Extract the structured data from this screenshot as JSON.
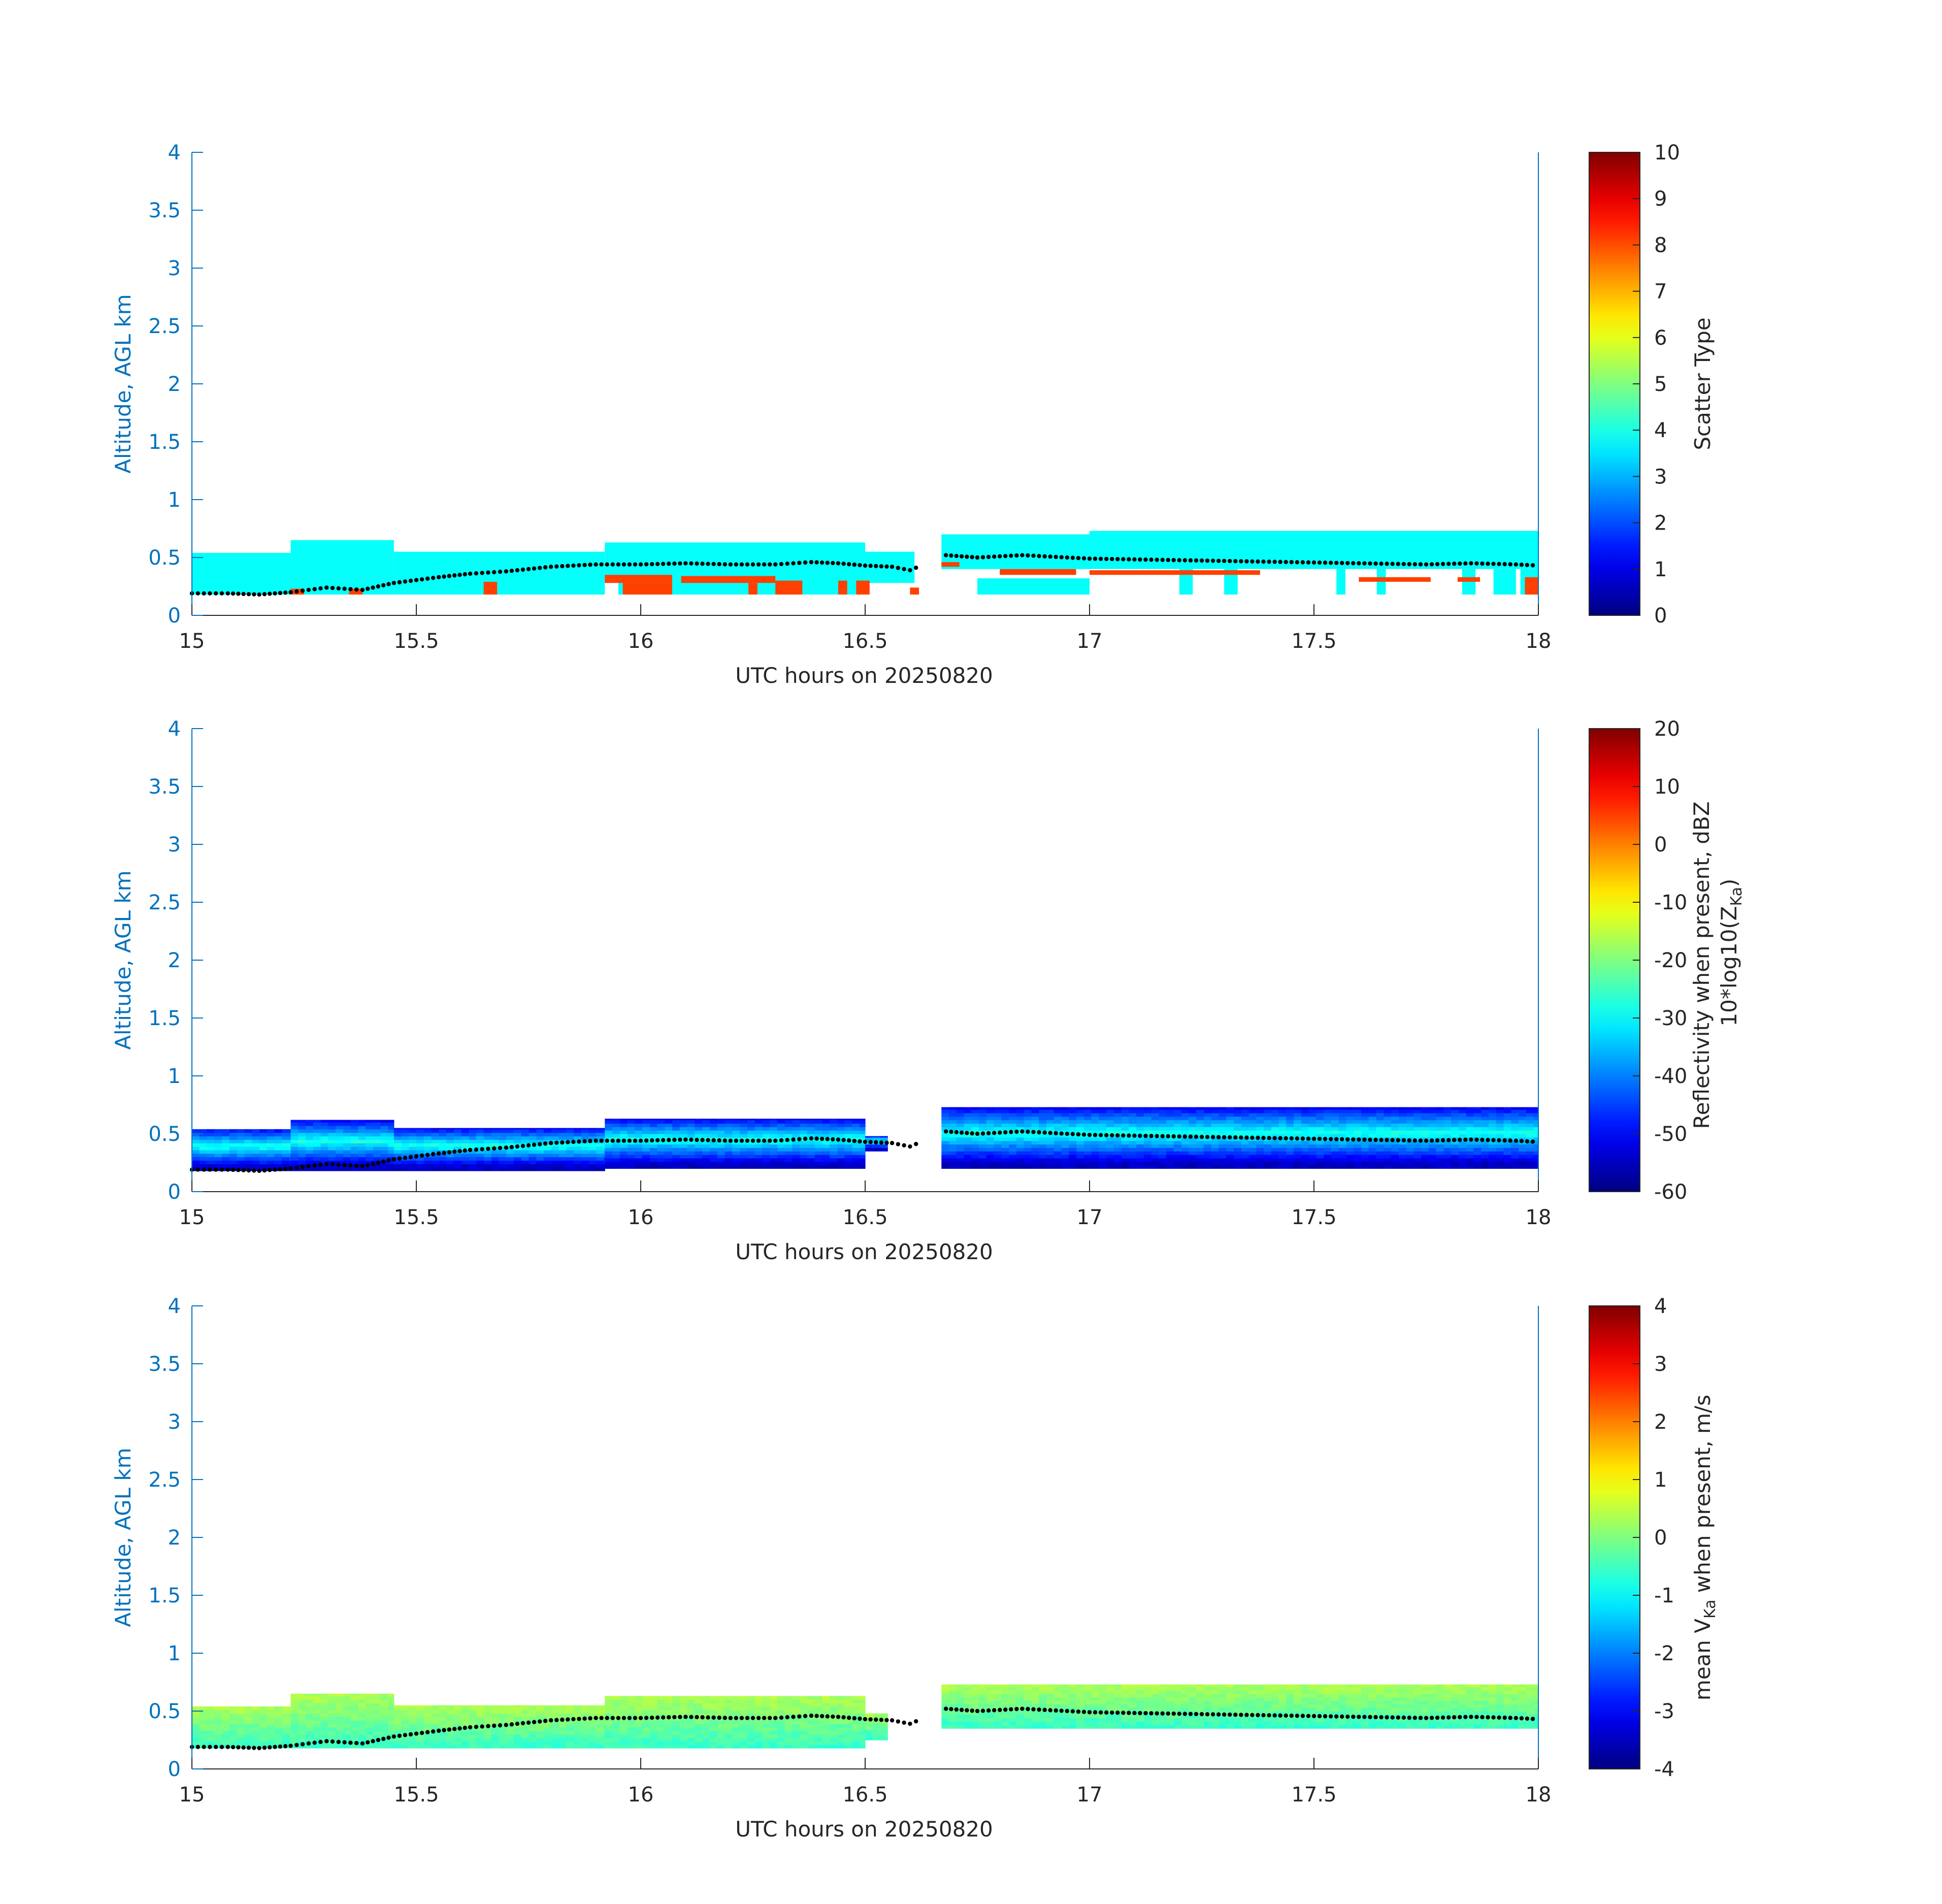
{
  "chart_data": [
    {
      "type": "heatmap",
      "panel": "scatter-type",
      "xlabel": "UTC hours on 20250820",
      "ylabel": "Altitude, AGL km",
      "xlim": [
        15,
        18
      ],
      "ylim": [
        0,
        4
      ],
      "xticks": [
        "15",
        "15.5",
        "16",
        "16.5",
        "17",
        "17.5",
        "18"
      ],
      "yticks": [
        "0",
        "0.5",
        "1",
        "1.5",
        "2",
        "2.5",
        "3",
        "3.5",
        "4"
      ],
      "colorbar": {
        "label": "Scatter Type",
        "range": [
          0,
          10
        ],
        "ticks": [
          "0",
          "1",
          "2",
          "3",
          "4",
          "5",
          "6",
          "7",
          "8",
          "9",
          "10"
        ],
        "colormap": "jet"
      },
      "cloud_layer": {
        "value": 3.8,
        "segments": [
          {
            "x": [
              15.0,
              15.22
            ],
            "y": [
              0.18,
              0.54
            ]
          },
          {
            "x": [
              15.22,
              15.45
            ],
            "y": [
              0.18,
              0.65
            ]
          },
          {
            "x": [
              15.45,
              15.92
            ],
            "y": [
              0.18,
              0.55
            ]
          },
          {
            "x": [
              15.92,
              16.5
            ],
            "y": [
              0.3,
              0.63
            ]
          },
          {
            "x": [
              16.5,
              16.61
            ],
            "y": [
              0.28,
              0.55
            ]
          },
          {
            "x": [
              16.67,
              17.0
            ],
            "y": [
              0.4,
              0.7
            ]
          },
          {
            "x": [
              17.0,
              18.0
            ],
            "y": [
              0.4,
              0.73
            ]
          }
        ],
        "lower_patches": [
          {
            "x": [
              15.95,
              16.5
            ],
            "y": [
              0.18,
              0.32
            ]
          },
          {
            "x": [
              16.75,
              17.0
            ],
            "y": [
              0.18,
              0.32
            ]
          },
          {
            "x": [
              17.2,
              17.23
            ],
            "y": [
              0.18,
              0.4
            ]
          },
          {
            "x": [
              17.3,
              17.33
            ],
            "y": [
              0.18,
              0.4
            ]
          },
          {
            "x": [
              17.55,
              17.57
            ],
            "y": [
              0.18,
              0.4
            ]
          },
          {
            "x": [
              17.64,
              17.66
            ],
            "y": [
              0.18,
              0.4
            ]
          },
          {
            "x": [
              17.83,
              17.86
            ],
            "y": [
              0.18,
              0.4
            ]
          },
          {
            "x": [
              17.9,
              17.95
            ],
            "y": [
              0.18,
              0.4
            ]
          },
          {
            "x": [
              17.96,
              18.0
            ],
            "y": [
              0.18,
              0.4
            ]
          }
        ]
      },
      "drizzle_patches": {
        "value": 8.3,
        "segments": [
          {
            "x": [
              15.22,
              15.25
            ],
            "y": [
              0.18,
              0.23
            ]
          },
          {
            "x": [
              15.35,
              15.38
            ],
            "y": [
              0.18,
              0.23
            ]
          },
          {
            "x": [
              15.65,
              15.68
            ],
            "y": [
              0.18,
              0.29
            ]
          },
          {
            "x": [
              15.92,
              16.07
            ],
            "y": [
              0.28,
              0.35
            ]
          },
          {
            "x": [
              15.96,
              16.07
            ],
            "y": [
              0.18,
              0.28
            ]
          },
          {
            "x": [
              16.09,
              16.3
            ],
            "y": [
              0.28,
              0.34
            ]
          },
          {
            "x": [
              16.24,
              16.26
            ],
            "y": [
              0.18,
              0.28
            ]
          },
          {
            "x": [
              16.3,
              16.36
            ],
            "y": [
              0.18,
              0.3
            ]
          },
          {
            "x": [
              16.44,
              16.46
            ],
            "y": [
              0.18,
              0.3
            ]
          },
          {
            "x": [
              16.48,
              16.51
            ],
            "y": [
              0.18,
              0.3
            ]
          },
          {
            "x": [
              16.6,
              16.62
            ],
            "y": [
              0.18,
              0.24
            ]
          },
          {
            "x": [
              16.67,
              16.71
            ],
            "y": [
              0.42,
              0.46
            ]
          },
          {
            "x": [
              16.8,
              16.97
            ],
            "y": [
              0.35,
              0.4
            ]
          },
          {
            "x": [
              17.0,
              17.38
            ],
            "y": [
              0.35,
              0.39
            ]
          },
          {
            "x": [
              17.6,
              17.76
            ],
            "y": [
              0.29,
              0.33
            ]
          },
          {
            "x": [
              17.82,
              17.87
            ],
            "y": [
              0.29,
              0.33
            ]
          },
          {
            "x": [
              17.97,
              18.0
            ],
            "y": [
              0.18,
              0.33
            ]
          }
        ]
      },
      "cloud_base": {
        "x": [
          15.0,
          15.08,
          15.15,
          15.22,
          15.3,
          15.38,
          15.45,
          15.55,
          15.62,
          15.7,
          15.8,
          15.9,
          16.0,
          16.1,
          16.2,
          16.3,
          16.38,
          16.44,
          16.5,
          16.56,
          16.6,
          16.68,
          16.75,
          16.85,
          17.0,
          17.15,
          17.3,
          17.45,
          17.6,
          17.75,
          17.85,
          17.95,
          18.0
        ],
        "y": [
          0.19,
          0.19,
          0.18,
          0.2,
          0.24,
          0.22,
          0.28,
          0.33,
          0.36,
          0.38,
          0.42,
          0.44,
          0.44,
          0.45,
          0.44,
          0.44,
          0.46,
          0.45,
          0.43,
          0.42,
          0.39,
          0.52,
          0.5,
          0.52,
          0.49,
          0.48,
          0.47,
          0.46,
          0.45,
          0.44,
          0.45,
          0.44,
          0.43
        ]
      }
    },
    {
      "type": "heatmap",
      "panel": "reflectivity",
      "xlabel": "UTC hours on 20250820",
      "ylabel": "Altitude, AGL km",
      "xlim": [
        15,
        18
      ],
      "ylim": [
        0,
        4
      ],
      "xticks": [
        "15",
        "15.5",
        "16",
        "16.5",
        "17",
        "17.5",
        "18"
      ],
      "yticks": [
        "0",
        "0.5",
        "1",
        "1.5",
        "2",
        "2.5",
        "3",
        "3.5",
        "4"
      ],
      "colorbar": {
        "label_line1": "Reflectivity when present, dBZ",
        "label_line2_prefix": "10*log10(Z",
        "label_line2_sub": "Ka",
        "label_line2_suffix": ")",
        "range": [
          -60,
          20
        ],
        "ticks": [
          "-60",
          "-50",
          "-40",
          "-30",
          "-20",
          "-10",
          "0",
          "10",
          "20"
        ],
        "colormap": "jet"
      },
      "cloud_layer": {
        "value_range": [
          -55,
          -28
        ],
        "segments": [
          {
            "x": [
              15.0,
              15.22
            ],
            "y": [
              0.18,
              0.54
            ]
          },
          {
            "x": [
              15.22,
              15.45
            ],
            "y": [
              0.18,
              0.62
            ]
          },
          {
            "x": [
              15.45,
              15.92
            ],
            "y": [
              0.18,
              0.55
            ]
          },
          {
            "x": [
              15.92,
              16.5
            ],
            "y": [
              0.2,
              0.63
            ]
          },
          {
            "x": [
              16.5,
              16.55
            ],
            "y": [
              0.35,
              0.48
            ]
          },
          {
            "x": [
              16.67,
              18.0
            ],
            "y": [
              0.2,
              0.73
            ]
          }
        ]
      },
      "cloud_base": {
        "x": [
          15.0,
          15.08,
          15.15,
          15.22,
          15.3,
          15.38,
          15.45,
          15.55,
          15.62,
          15.7,
          15.8,
          15.9,
          16.0,
          16.1,
          16.2,
          16.3,
          16.38,
          16.44,
          16.5,
          16.56,
          16.6,
          16.68,
          16.75,
          16.85,
          17.0,
          17.15,
          17.3,
          17.45,
          17.6,
          17.75,
          17.85,
          17.95,
          18.0
        ],
        "y": [
          0.19,
          0.19,
          0.18,
          0.2,
          0.24,
          0.22,
          0.28,
          0.33,
          0.36,
          0.38,
          0.42,
          0.44,
          0.44,
          0.45,
          0.44,
          0.44,
          0.46,
          0.45,
          0.43,
          0.42,
          0.39,
          0.52,
          0.5,
          0.52,
          0.49,
          0.48,
          0.47,
          0.46,
          0.45,
          0.44,
          0.45,
          0.44,
          0.43
        ]
      }
    },
    {
      "type": "heatmap",
      "panel": "mean-doppler-velocity",
      "xlabel": "UTC hours on 20250820",
      "ylabel": "Altitude, AGL km",
      "xlim": [
        15,
        18
      ],
      "ylim": [
        0,
        4
      ],
      "xticks": [
        "15",
        "15.5",
        "16",
        "16.5",
        "17",
        "17.5",
        "18"
      ],
      "yticks": [
        "0",
        "0.5",
        "1",
        "1.5",
        "2",
        "2.5",
        "3",
        "3.5",
        "4"
      ],
      "colorbar": {
        "label_prefix": "mean V",
        "label_sub": "Ka",
        "label_suffix": " when present, m/s",
        "range": [
          -4,
          4
        ],
        "ticks": [
          "-4",
          "-3",
          "-2",
          "-1",
          "0",
          "1",
          "2",
          "3",
          "4"
        ],
        "colormap": "jet"
      },
      "cloud_layer": {
        "value_range": [
          -1.2,
          0.4
        ],
        "segments": [
          {
            "x": [
              15.0,
              15.22
            ],
            "y": [
              0.18,
              0.54
            ]
          },
          {
            "x": [
              15.22,
              15.45
            ],
            "y": [
              0.18,
              0.65
            ]
          },
          {
            "x": [
              15.45,
              15.92
            ],
            "y": [
              0.18,
              0.55
            ]
          },
          {
            "x": [
              15.92,
              16.5
            ],
            "y": [
              0.18,
              0.63
            ]
          },
          {
            "x": [
              16.5,
              16.55
            ],
            "y": [
              0.25,
              0.48
            ]
          },
          {
            "x": [
              16.67,
              18.0
            ],
            "y": [
              0.35,
              0.73
            ]
          }
        ]
      },
      "cloud_base": {
        "x": [
          15.0,
          15.08,
          15.15,
          15.22,
          15.3,
          15.38,
          15.45,
          15.55,
          15.62,
          15.7,
          15.8,
          15.9,
          16.0,
          16.1,
          16.2,
          16.3,
          16.38,
          16.44,
          16.5,
          16.56,
          16.6,
          16.68,
          16.75,
          16.85,
          17.0,
          17.15,
          17.3,
          17.45,
          17.6,
          17.75,
          17.85,
          17.95,
          18.0
        ],
        "y": [
          0.19,
          0.19,
          0.18,
          0.2,
          0.24,
          0.22,
          0.28,
          0.33,
          0.36,
          0.38,
          0.42,
          0.44,
          0.44,
          0.45,
          0.44,
          0.44,
          0.46,
          0.45,
          0.43,
          0.42,
          0.39,
          0.52,
          0.5,
          0.52,
          0.49,
          0.48,
          0.47,
          0.46,
          0.45,
          0.44,
          0.45,
          0.44,
          0.43
        ]
      }
    }
  ],
  "colors": {
    "axis_left": "#0072bd",
    "axis_bottom": "#262626",
    "cloud_base_marker": "#000000",
    "drizzle": "#ff4000",
    "cloud_scatter_type": "#1efae0"
  }
}
